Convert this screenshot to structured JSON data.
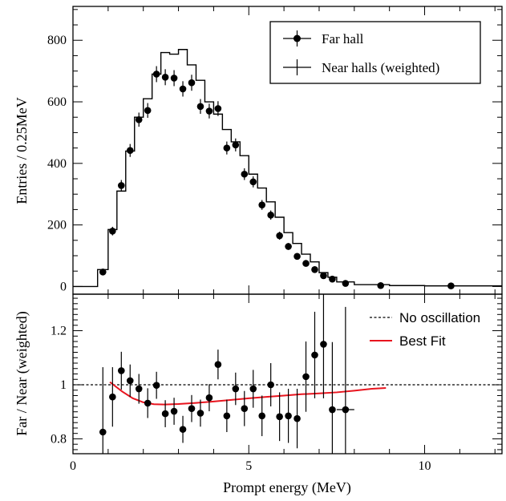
{
  "chart_data": [
    {
      "type": "scatter",
      "panel": "top",
      "ylabel": "Entries / 0.25MeV",
      "xlim": [
        0,
        12.2
      ],
      "ylim": [
        -25,
        910
      ],
      "yticks": [
        "0",
        "200",
        "400",
        "600",
        "800"
      ],
      "legend": {
        "placement": "top-right",
        "entries": [
          "Far hall",
          "Near halls (weighted)"
        ]
      },
      "series": [
        {
          "name": "Near halls (weighted)",
          "style": "histogram-step",
          "bin_edges": [
            0.7,
            1.0,
            1.25,
            1.5,
            1.75,
            2.0,
            2.25,
            2.5,
            2.75,
            3.0,
            3.25,
            3.5,
            3.75,
            4.0,
            4.25,
            4.5,
            4.75,
            5.0,
            5.25,
            5.5,
            5.75,
            6.0,
            6.25,
            6.5,
            6.75,
            7.0,
            7.25,
            7.5,
            8.0,
            9.0,
            10.0,
            12.2
          ],
          "values": [
            55,
            185,
            310,
            440,
            550,
            610,
            690,
            760,
            755,
            770,
            720,
            670,
            600,
            560,
            510,
            470,
            425,
            365,
            320,
            275,
            225,
            175,
            140,
            105,
            80,
            45,
            30,
            15,
            6,
            3,
            2
          ]
        },
        {
          "name": "Far hall",
          "style": "points-with-errors",
          "x": [
            0.85,
            1.125,
            1.375,
            1.625,
            1.875,
            2.125,
            2.375,
            2.625,
            2.875,
            3.125,
            3.375,
            3.625,
            3.875,
            4.125,
            4.375,
            4.625,
            4.875,
            5.125,
            5.375,
            5.625,
            5.875,
            6.125,
            6.375,
            6.625,
            6.875,
            7.125,
            7.375,
            7.75,
            8.75,
            10.75
          ],
          "y": [
            47,
            180,
            328,
            442,
            542,
            572,
            690,
            680,
            677,
            642,
            662,
            585,
            570,
            578,
            450,
            460,
            365,
            340,
            265,
            232,
            165,
            130,
            98,
            75,
            55,
            35,
            24,
            10,
            3,
            2
          ],
          "yerr": [
            8,
            14,
            18,
            21,
            23,
            24,
            26,
            26,
            26,
            25,
            26,
            24,
            24,
            24,
            21,
            21,
            19,
            18,
            16,
            15,
            13,
            11,
            10,
            9,
            7,
            6,
            5,
            3,
            2,
            1.5
          ]
        }
      ]
    },
    {
      "type": "scatter",
      "panel": "bottom",
      "ylabel": "Far / Near (weighted)",
      "xlabel": "Prompt energy (MeV)",
      "xlim": [
        0,
        12.2
      ],
      "ylim": [
        0.745,
        1.335
      ],
      "xticks": [
        "0",
        "5",
        "10"
      ],
      "yticks": [
        "0.8",
        "1",
        "1.2"
      ],
      "legend": {
        "placement": "top-right",
        "entries": [
          "No oscillation",
          "Best Fit"
        ]
      },
      "series": [
        {
          "name": "Far/Near ratio",
          "style": "points-with-errors",
          "x": [
            0.85,
            1.125,
            1.375,
            1.625,
            1.875,
            2.125,
            2.375,
            2.625,
            2.875,
            3.125,
            3.375,
            3.625,
            3.875,
            4.125,
            4.375,
            4.625,
            4.875,
            5.125,
            5.375,
            5.625,
            5.875,
            6.125,
            6.375,
            6.625,
            6.875,
            7.125,
            7.375,
            7.75
          ],
          "y": [
            0.825,
            0.955,
            1.052,
            1.015,
            0.985,
            0.932,
            0.998,
            0.893,
            0.902,
            0.835,
            0.912,
            0.895,
            0.952,
            1.075,
            0.885,
            0.985,
            0.912,
            0.985,
            0.885,
            1.0,
            0.882,
            0.885,
            0.875,
            1.03,
            1.11,
            1.15,
            0.908,
            0.908
          ],
          "yerr": [
            0.24,
            0.11,
            0.07,
            0.06,
            0.055,
            0.055,
            0.05,
            0.05,
            0.05,
            0.05,
            0.05,
            0.05,
            0.05,
            0.055,
            0.06,
            0.06,
            0.065,
            0.07,
            0.075,
            0.08,
            0.09,
            0.1,
            0.11,
            0.13,
            0.16,
            0.2,
            0.25,
            0.38
          ],
          "xerr_shown_at": [
            7.75
          ],
          "xerr": 0.25
        },
        {
          "name": "No oscillation",
          "style": "dashed-line",
          "x": [
            0,
            12.2
          ],
          "y": [
            1.0,
            1.0
          ],
          "color": "#000000"
        },
        {
          "name": "Best Fit",
          "style": "line",
          "color": "#e8141e",
          "x": [
            1.05,
            1.4,
            1.7,
            2.0,
            2.3,
            2.6,
            3.0,
            3.5,
            4.0,
            4.5,
            5.0,
            5.5,
            6.0,
            6.5,
            7.0,
            7.5,
            8.0,
            8.5,
            8.9
          ],
          "y": [
            1.01,
            0.975,
            0.95,
            0.935,
            0.928,
            0.927,
            0.929,
            0.933,
            0.938,
            0.944,
            0.95,
            0.955,
            0.96,
            0.965,
            0.968,
            0.972,
            0.978,
            0.985,
            0.988
          ]
        }
      ]
    }
  ]
}
